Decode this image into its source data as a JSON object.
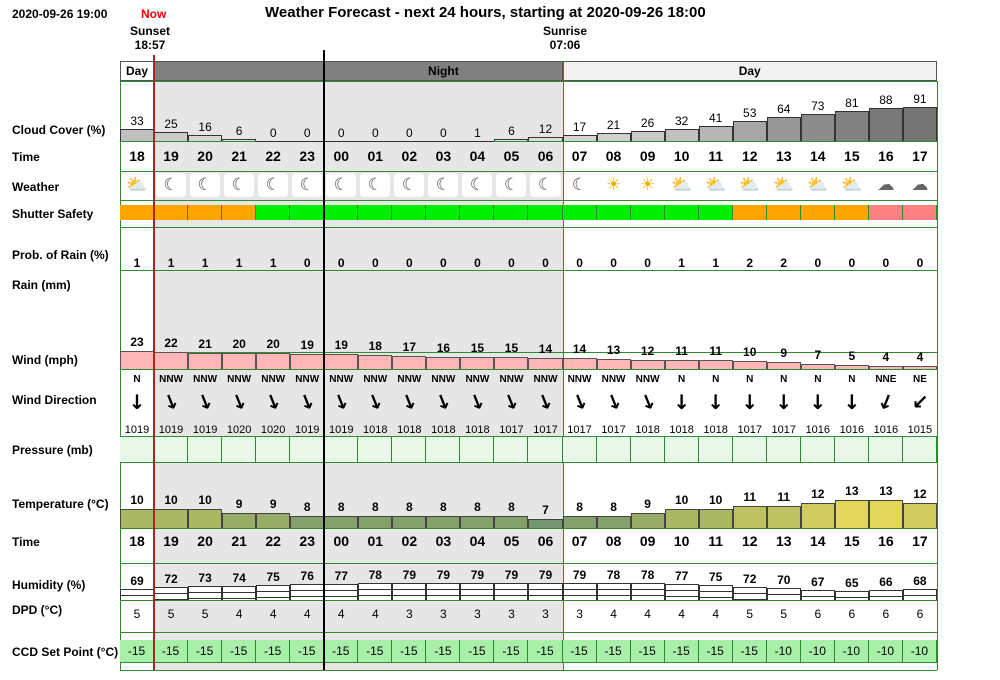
{
  "header": {
    "timestamp": "2020-09-26 19:00",
    "now_label": "Now",
    "title": "Weather Forecast - next 24 hours, starting at 2020-09-26 18:00",
    "sunset_label": "Sunset",
    "sunset_time": "18:57",
    "sunrise_label": "Sunrise",
    "sunrise_time": "07:06"
  },
  "periods": [
    {
      "label": "Day",
      "start": 0,
      "end": 1,
      "color": "#ffffff"
    },
    {
      "label": "",
      "start": 1,
      "end": 6,
      "color": "#808080"
    },
    {
      "label": "Night",
      "start": 6,
      "end": 13,
      "color": "#808080"
    },
    {
      "label": "Day",
      "start": 13,
      "end": 24,
      "color": "#f2f2f2"
    }
  ],
  "labels": {
    "cloud": "Cloud Cover (%)",
    "time": "Time",
    "weather": "Weather",
    "shutter": "Shutter Safety",
    "rain_prob": "Prob. of Rain (%)",
    "rain": "Rain (mm)",
    "wind": "Wind (mph)",
    "wind_dir": "Wind Direction",
    "pressure": "Pressure (mb)",
    "temperature": "Temperature (°C)",
    "time2": "Time",
    "humidity": "Humidity (%)",
    "dpd": "DPD (°C)",
    "ccd": "CCD Set Point (°C)"
  },
  "hours": [
    "18",
    "19",
    "20",
    "21",
    "22",
    "23",
    "00",
    "01",
    "02",
    "03",
    "04",
    "05",
    "06",
    "07",
    "08",
    "09",
    "10",
    "11",
    "12",
    "13",
    "14",
    "15",
    "16",
    "17"
  ],
  "cloud_cover": [
    33,
    25,
    16,
    6,
    0,
    0,
    0,
    0,
    0,
    0,
    1,
    6,
    12,
    17,
    21,
    26,
    32,
    41,
    53,
    64,
    73,
    81,
    88,
    91
  ],
  "weather_icons": [
    "partly-cloudy-night-icon",
    "moon-icon",
    "moon-icon",
    "moon-icon",
    "moon-icon",
    "moon-icon",
    "moon-icon",
    "moon-icon",
    "moon-icon",
    "moon-icon",
    "moon-icon",
    "moon-icon",
    "moon-icon",
    "moon-icon",
    "sun-icon",
    "sun-icon",
    "partly-cloudy-day-icon",
    "partly-cloudy-day-icon",
    "partly-cloudy-day-icon",
    "partly-cloudy-day-icon",
    "partly-cloudy-day-icon",
    "partly-cloudy-day-icon",
    "cloud-icon",
    "cloud-icon"
  ],
  "shutter_safety": [
    "#ffa500",
    "#ffa500",
    "#ffa500",
    "#ffa500",
    "#00ee00",
    "#00ee00",
    "#00ee00",
    "#00ee00",
    "#00ee00",
    "#00ee00",
    "#00ee00",
    "#00ee00",
    "#00ee00",
    "#00ee00",
    "#00ee00",
    "#00ee00",
    "#00ee00",
    "#00ee00",
    "#ffa500",
    "#ffa500",
    "#ffa500",
    "#ffa500",
    "#ff8080",
    "#ff8080"
  ],
  "rain_probability": [
    "1",
    "1",
    "1",
    "1",
    "1",
    "0",
    "0",
    "0",
    "0",
    "0",
    "0",
    "0",
    "0",
    "0",
    "0",
    "0",
    "1",
    "1",
    "2",
    "2",
    "0",
    "0",
    "0",
    "0"
  ],
  "wind_speed": [
    23,
    22,
    21,
    20,
    20,
    19,
    19,
    18,
    17,
    16,
    15,
    15,
    14,
    14,
    13,
    12,
    11,
    11,
    10,
    9,
    7,
    5,
    4,
    4
  ],
  "wind_direction": [
    "N",
    "NNW",
    "NNW",
    "NNW",
    "NNW",
    "NNW",
    "NNW",
    "NNW",
    "NNW",
    "NNW",
    "NNW",
    "NNW",
    "NNW",
    "NNW",
    "NNW",
    "NNW",
    "N",
    "N",
    "N",
    "N",
    "N",
    "N",
    "NNE",
    "NE"
  ],
  "pressure": [
    "1019",
    "1019",
    "1019",
    "1020",
    "1020",
    "1019",
    "1019",
    "1018",
    "1018",
    "1018",
    "1018",
    "1017",
    "1017",
    "1017",
    "1017",
    "1018",
    "1018",
    "1018",
    "1017",
    "1017",
    "1016",
    "1016",
    "1016",
    "1015"
  ],
  "temperature": [
    10,
    10,
    10,
    9,
    9,
    8,
    8,
    8,
    8,
    8,
    8,
    8,
    7,
    8,
    8,
    9,
    10,
    10,
    11,
    11,
    12,
    13,
    13,
    12
  ],
  "humidity": [
    69,
    72,
    73,
    74,
    75,
    76,
    77,
    78,
    79,
    79,
    79,
    79,
    79,
    79,
    78,
    78,
    77,
    75,
    72,
    70,
    67,
    65,
    66,
    68
  ],
  "dpd": [
    "5",
    "5",
    "5",
    "4",
    "4",
    "4",
    "4",
    "4",
    "3",
    "3",
    "3",
    "3",
    "3",
    "3",
    "4",
    "4",
    "4",
    "4",
    "5",
    "5",
    "6",
    "6",
    "6",
    "6"
  ],
  "ccd_set_point": [
    "-15",
    "-15",
    "-15",
    "-15",
    "-15",
    "-15",
    "-15",
    "-15",
    "-15",
    "-15",
    "-15",
    "-15",
    "-15",
    "-15",
    "-15",
    "-15",
    "-15",
    "-15",
    "-15",
    "-10",
    "-10",
    "-10",
    "-10",
    "-10"
  ],
  "colors": {
    "grid": "#2e8b2e",
    "night_shade": "#e6e6e6",
    "now_line": "#b22222",
    "wind_fill": "#ffb6b6",
    "ccd_fill": "#a8f0a8",
    "pressure_fill": "#eaf8ea",
    "now_text": "#ff0000"
  }
}
